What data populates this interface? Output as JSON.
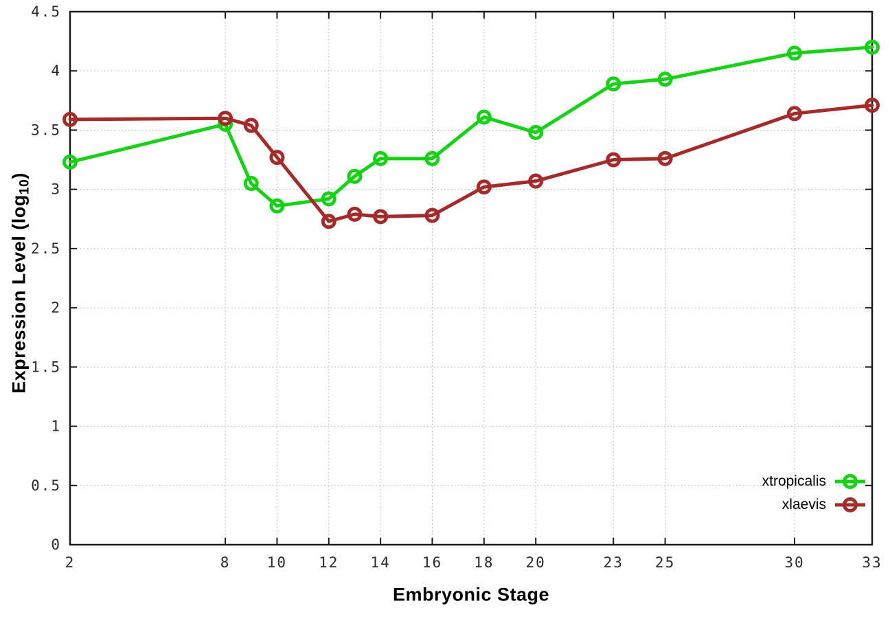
{
  "chart_data": {
    "type": "line",
    "title": "",
    "xlabel": "Embryonic Stage",
    "ylabel": "Expression Level (log10)",
    "ylabel_parts": {
      "main": "Expression Level (log",
      "sub": "10",
      "close": ")"
    },
    "xlim": [
      2,
      33
    ],
    "ylim": [
      0,
      4.5
    ],
    "x_ticks": [
      "2",
      "8",
      "10",
      "12",
      "14",
      "16",
      "18",
      "20",
      "23",
      "25",
      "30",
      "33"
    ],
    "y_ticks": [
      "0",
      "0.5",
      "1",
      "1.5",
      "2",
      "2.5",
      "3",
      "3.5",
      "4",
      "4.5"
    ],
    "grid": true,
    "legend_position": "inside-bottom-right",
    "x": [
      2,
      8,
      9,
      10,
      12,
      13,
      14,
      16,
      18,
      20,
      23,
      25,
      30,
      33
    ],
    "series": [
      {
        "name": "xtropicalis",
        "color": "#17d117",
        "values": [
          3.23,
          3.55,
          3.05,
          2.86,
          2.92,
          3.11,
          3.26,
          3.26,
          3.61,
          3.48,
          3.89,
          3.93,
          4.15,
          4.2
        ]
      },
      {
        "name": "xlaevis",
        "color": "#a52a2a",
        "values": [
          3.59,
          3.6,
          3.54,
          3.27,
          2.73,
          2.79,
          2.77,
          2.78,
          3.02,
          3.07,
          3.25,
          3.26,
          3.64,
          3.71
        ]
      }
    ]
  },
  "colors": {
    "background": "#ffffff",
    "axis": "#1a1a1a",
    "grid": "#ababab",
    "tick_text": "#2a2a2a",
    "legend_text": "#000000"
  }
}
